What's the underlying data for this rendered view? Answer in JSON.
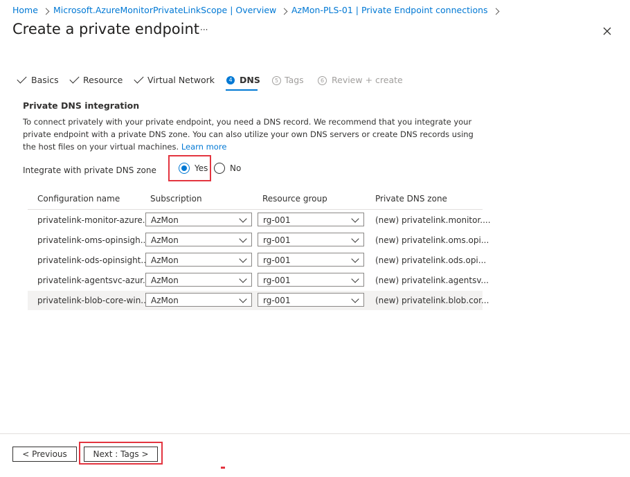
{
  "breadcrumb": [
    "Home",
    "Microsoft.AzureMonitorPrivateLinkScope | Overview",
    "AzMon-PLS-01 | Private Endpoint connections"
  ],
  "header": {
    "title": "Create a private endpoint",
    "more": "···"
  },
  "tabs": [
    {
      "label": "Basics"
    },
    {
      "label": "Resource"
    },
    {
      "label": "Virtual Network"
    },
    {
      "step": "4",
      "label": "DNS"
    },
    {
      "step": "5",
      "label": "Tags"
    },
    {
      "step": "6",
      "label": "Review + create"
    }
  ],
  "section": {
    "title": "Private DNS integration",
    "description": "To connect privately with your private endpoint, you need a DNS record. We recommend that you integrate your private endpoint with a private DNS zone. You can also utilize your own DNS servers or create DNS records using the host files on your virtual machines.",
    "link": "Learn more"
  },
  "integrate": {
    "label": "Integrate with private DNS zone",
    "options": [
      "Yes",
      "No"
    ]
  },
  "table": {
    "headers": [
      "Configuration name",
      "Subscription",
      "Resource group",
      "Private DNS zone"
    ],
    "rows": [
      [
        "privatelink-monitor-azure...",
        "AzMon",
        "rg-001",
        "(new) privatelink.monitor...."
      ],
      [
        "privatelink-oms-opinsigh...",
        "AzMon",
        "rg-001",
        "(new) privatelink.oms.opi..."
      ],
      [
        "privatelink-ods-opinsight...",
        "AzMon",
        "rg-001",
        "(new) privatelink.ods.opi..."
      ],
      [
        "privatelink-agentsvc-azur...",
        "AzMon",
        "rg-001",
        "(new) privatelink.agentsv..."
      ],
      [
        "privatelink-blob-core-win...",
        "AzMon",
        "rg-001",
        "(new) privatelink.blob.cor..."
      ]
    ]
  },
  "footer": {
    "previous": "< Previous",
    "next": "Next : Tags >"
  }
}
